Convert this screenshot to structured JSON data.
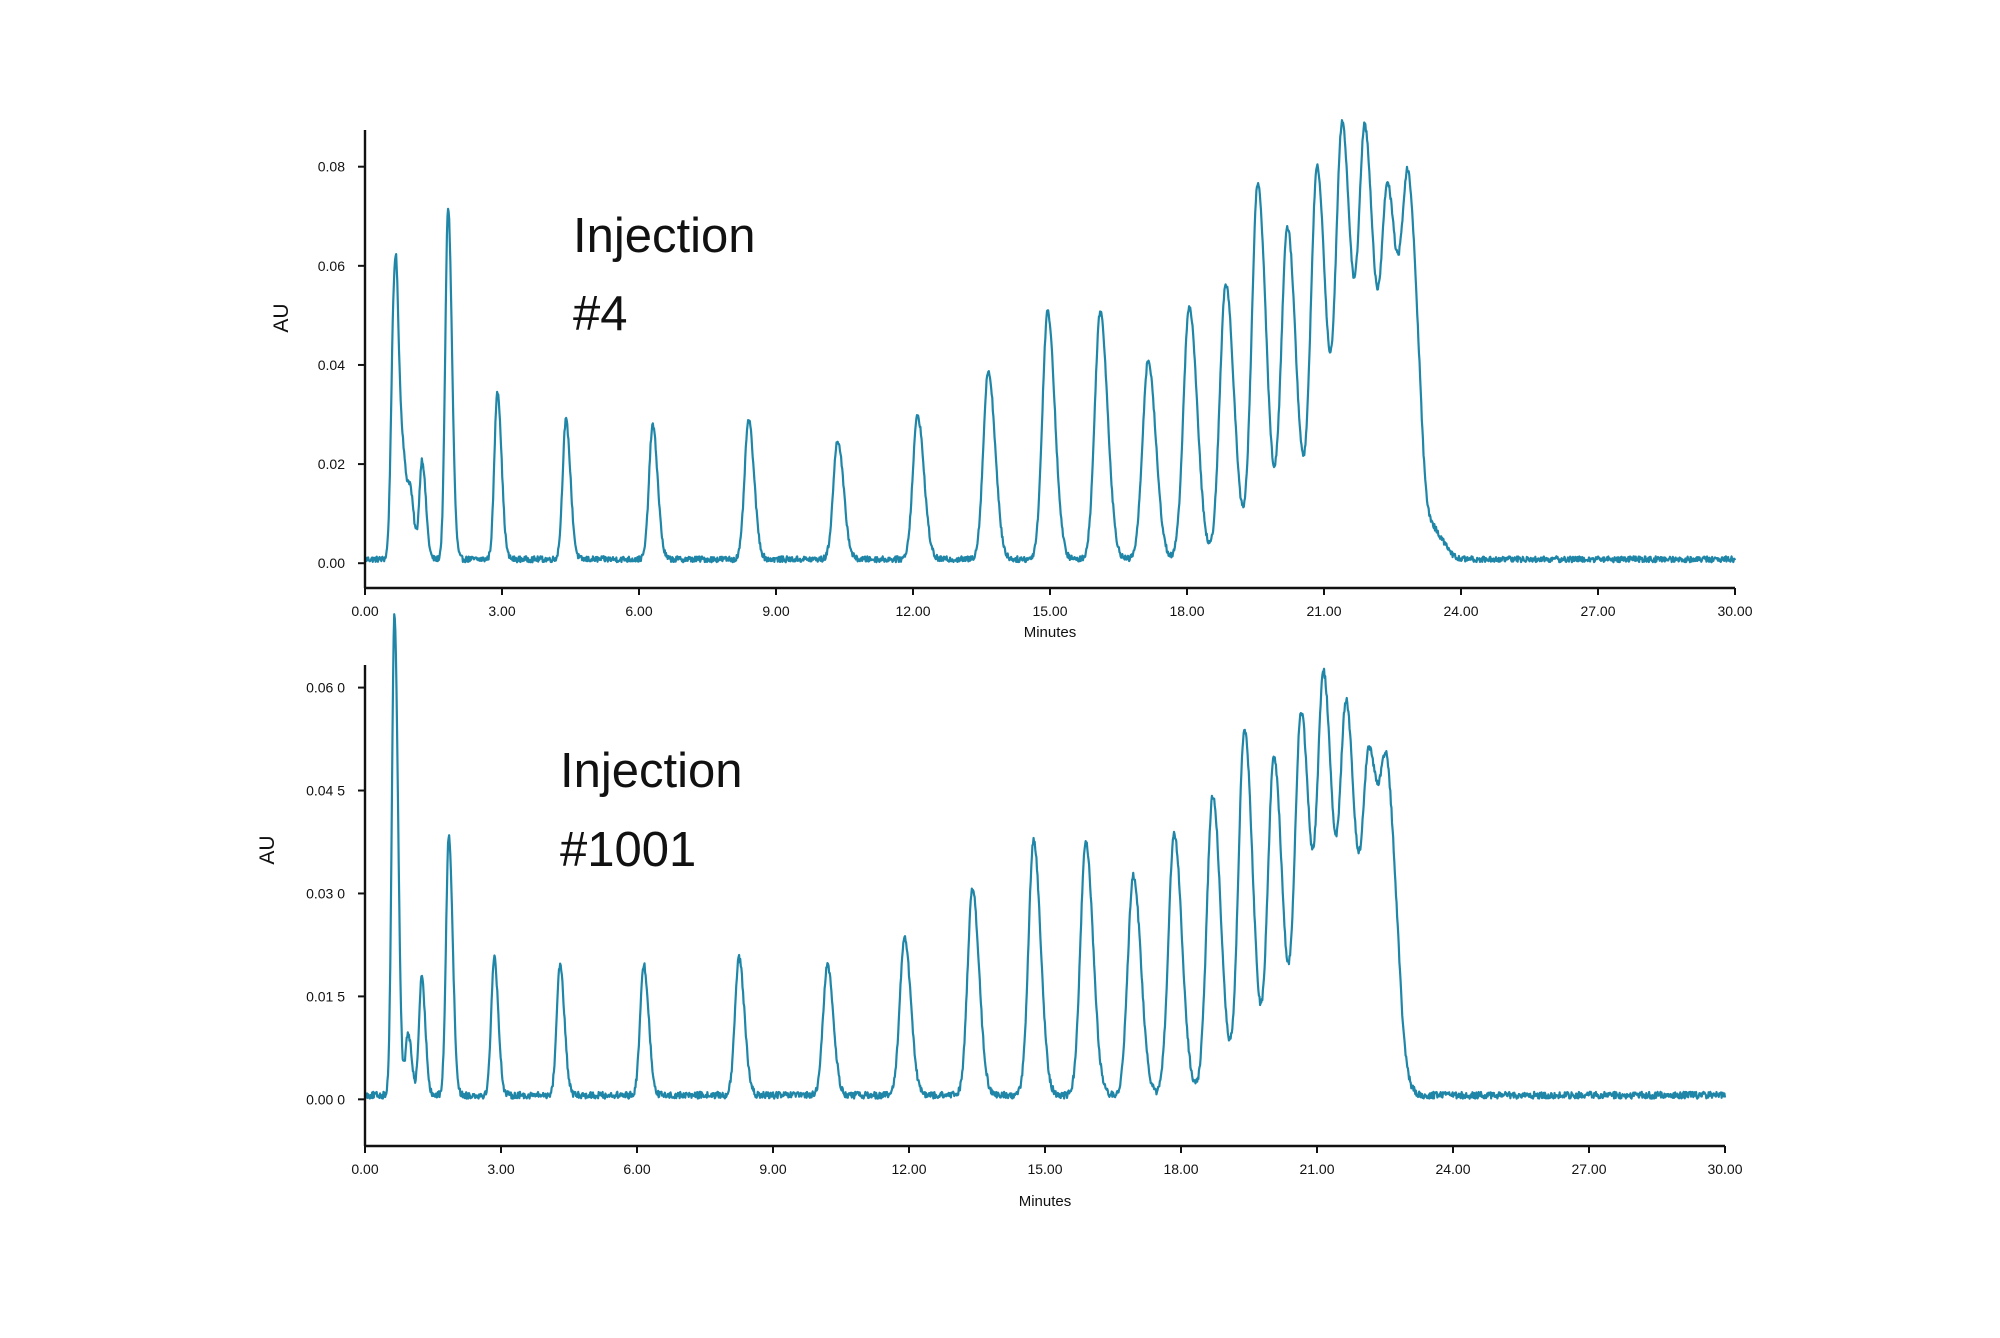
{
  "colors": {
    "trace": "#1f86a8",
    "axis": "#111111",
    "background": "#ffffff"
  },
  "chart_data": [
    {
      "type": "line",
      "xlabel": "Minutes",
      "ylabel": "AU",
      "xlim": [
        0,
        30
      ],
      "ylim": [
        -0.005,
        0.087
      ],
      "xticks": [
        "0.00",
        "3.00",
        "6.00",
        "9.00",
        "12.00",
        "15.00",
        "18.00",
        "21.00",
        "24.00",
        "27.00",
        "30.00"
      ],
      "yticks": [
        {
          "value": 0.0,
          "label": "0.00"
        },
        {
          "value": 0.02,
          "label": "0.02"
        },
        {
          "value": 0.04,
          "label": "0.04"
        },
        {
          "value": 0.06,
          "label": "0.06"
        },
        {
          "value": 0.08,
          "label": "0.08"
        }
      ],
      "annotation": [
        "Injection",
        "#4"
      ],
      "grid": false,
      "baseline": 0.0008,
      "noise": 0.0006,
      "peaks": [
        {
          "t": 0.62,
          "h": 0.039
        },
        {
          "t": 0.7,
          "h": 0.034
        },
        {
          "t": 0.85,
          "h": 0.016
        },
        {
          "t": 1.0,
          "h": 0.012
        },
        {
          "t": 1.25,
          "h": 0.02
        },
        {
          "t": 1.82,
          "h": 0.071
        },
        {
          "t": 2.9,
          "h": 0.034
        },
        {
          "t": 4.4,
          "h": 0.028
        },
        {
          "t": 6.3,
          "h": 0.027
        },
        {
          "t": 8.4,
          "h": 0.028
        },
        {
          "t": 10.35,
          "h": 0.024
        },
        {
          "t": 12.1,
          "h": 0.029
        },
        {
          "t": 13.65,
          "h": 0.038
        },
        {
          "t": 14.95,
          "h": 0.05
        },
        {
          "t": 16.1,
          "h": 0.05
        },
        {
          "t": 17.15,
          "h": 0.04
        },
        {
          "t": 18.05,
          "h": 0.051
        },
        {
          "t": 18.85,
          "h": 0.055
        },
        {
          "t": 19.55,
          "h": 0.074
        },
        {
          "t": 20.2,
          "h": 0.064
        },
        {
          "t": 20.85,
          "h": 0.075
        },
        {
          "t": 21.4,
          "h": 0.082
        },
        {
          "t": 21.9,
          "h": 0.079
        },
        {
          "t": 22.4,
          "h": 0.066
        },
        {
          "t": 22.85,
          "h": 0.066
        },
        {
          "t": 23.45,
          "h": 0.005
        }
      ],
      "hump": {
        "start": 18.5,
        "end": 23.1,
        "h": 0.008
      }
    },
    {
      "type": "line",
      "xlabel": "Minutes",
      "ylabel": "AU",
      "xlim": [
        0,
        30
      ],
      "ylim": [
        -0.0068,
        0.063
      ],
      "xticks": [
        "0.00",
        "3.00",
        "6.00",
        "9.00",
        "12.00",
        "15.00",
        "18.00",
        "21.00",
        "24.00",
        "27.00",
        "30.00"
      ],
      "yticks": [
        {
          "value": 0.0,
          "label": "0.00 0"
        },
        {
          "value": 0.015,
          "label": "0.01 5"
        },
        {
          "value": 0.03,
          "label": "0.03 0"
        },
        {
          "value": 0.045,
          "label": "0.04 5"
        },
        {
          "value": 0.06,
          "label": "0.06 0"
        }
      ],
      "annotation": [
        "Injection",
        "#1001"
      ],
      "grid": false,
      "baseline": 0.0006,
      "noise": 0.0005,
      "peaks": [
        {
          "t": 0.65,
          "h": 0.07
        },
        {
          "t": 0.95,
          "h": 0.009
        },
        {
          "t": 1.25,
          "h": 0.017
        },
        {
          "t": 1.85,
          "h": 0.038
        },
        {
          "t": 2.85,
          "h": 0.02
        },
        {
          "t": 4.3,
          "h": 0.019
        },
        {
          "t": 6.15,
          "h": 0.019
        },
        {
          "t": 8.25,
          "h": 0.02
        },
        {
          "t": 10.2,
          "h": 0.019
        },
        {
          "t": 11.9,
          "h": 0.023
        },
        {
          "t": 13.4,
          "h": 0.03
        },
        {
          "t": 14.75,
          "h": 0.037
        },
        {
          "t": 15.9,
          "h": 0.037
        },
        {
          "t": 16.95,
          "h": 0.032
        },
        {
          "t": 17.85,
          "h": 0.038
        },
        {
          "t": 18.7,
          "h": 0.043
        },
        {
          "t": 19.4,
          "h": 0.052
        },
        {
          "t": 20.05,
          "h": 0.047
        },
        {
          "t": 20.65,
          "h": 0.053
        },
        {
          "t": 21.15,
          "h": 0.057
        },
        {
          "t": 21.65,
          "h": 0.052
        },
        {
          "t": 22.15,
          "h": 0.044
        },
        {
          "t": 22.55,
          "h": 0.039
        }
      ],
      "hump": {
        "start": 18.0,
        "end": 22.8,
        "h": 0.005
      }
    }
  ]
}
